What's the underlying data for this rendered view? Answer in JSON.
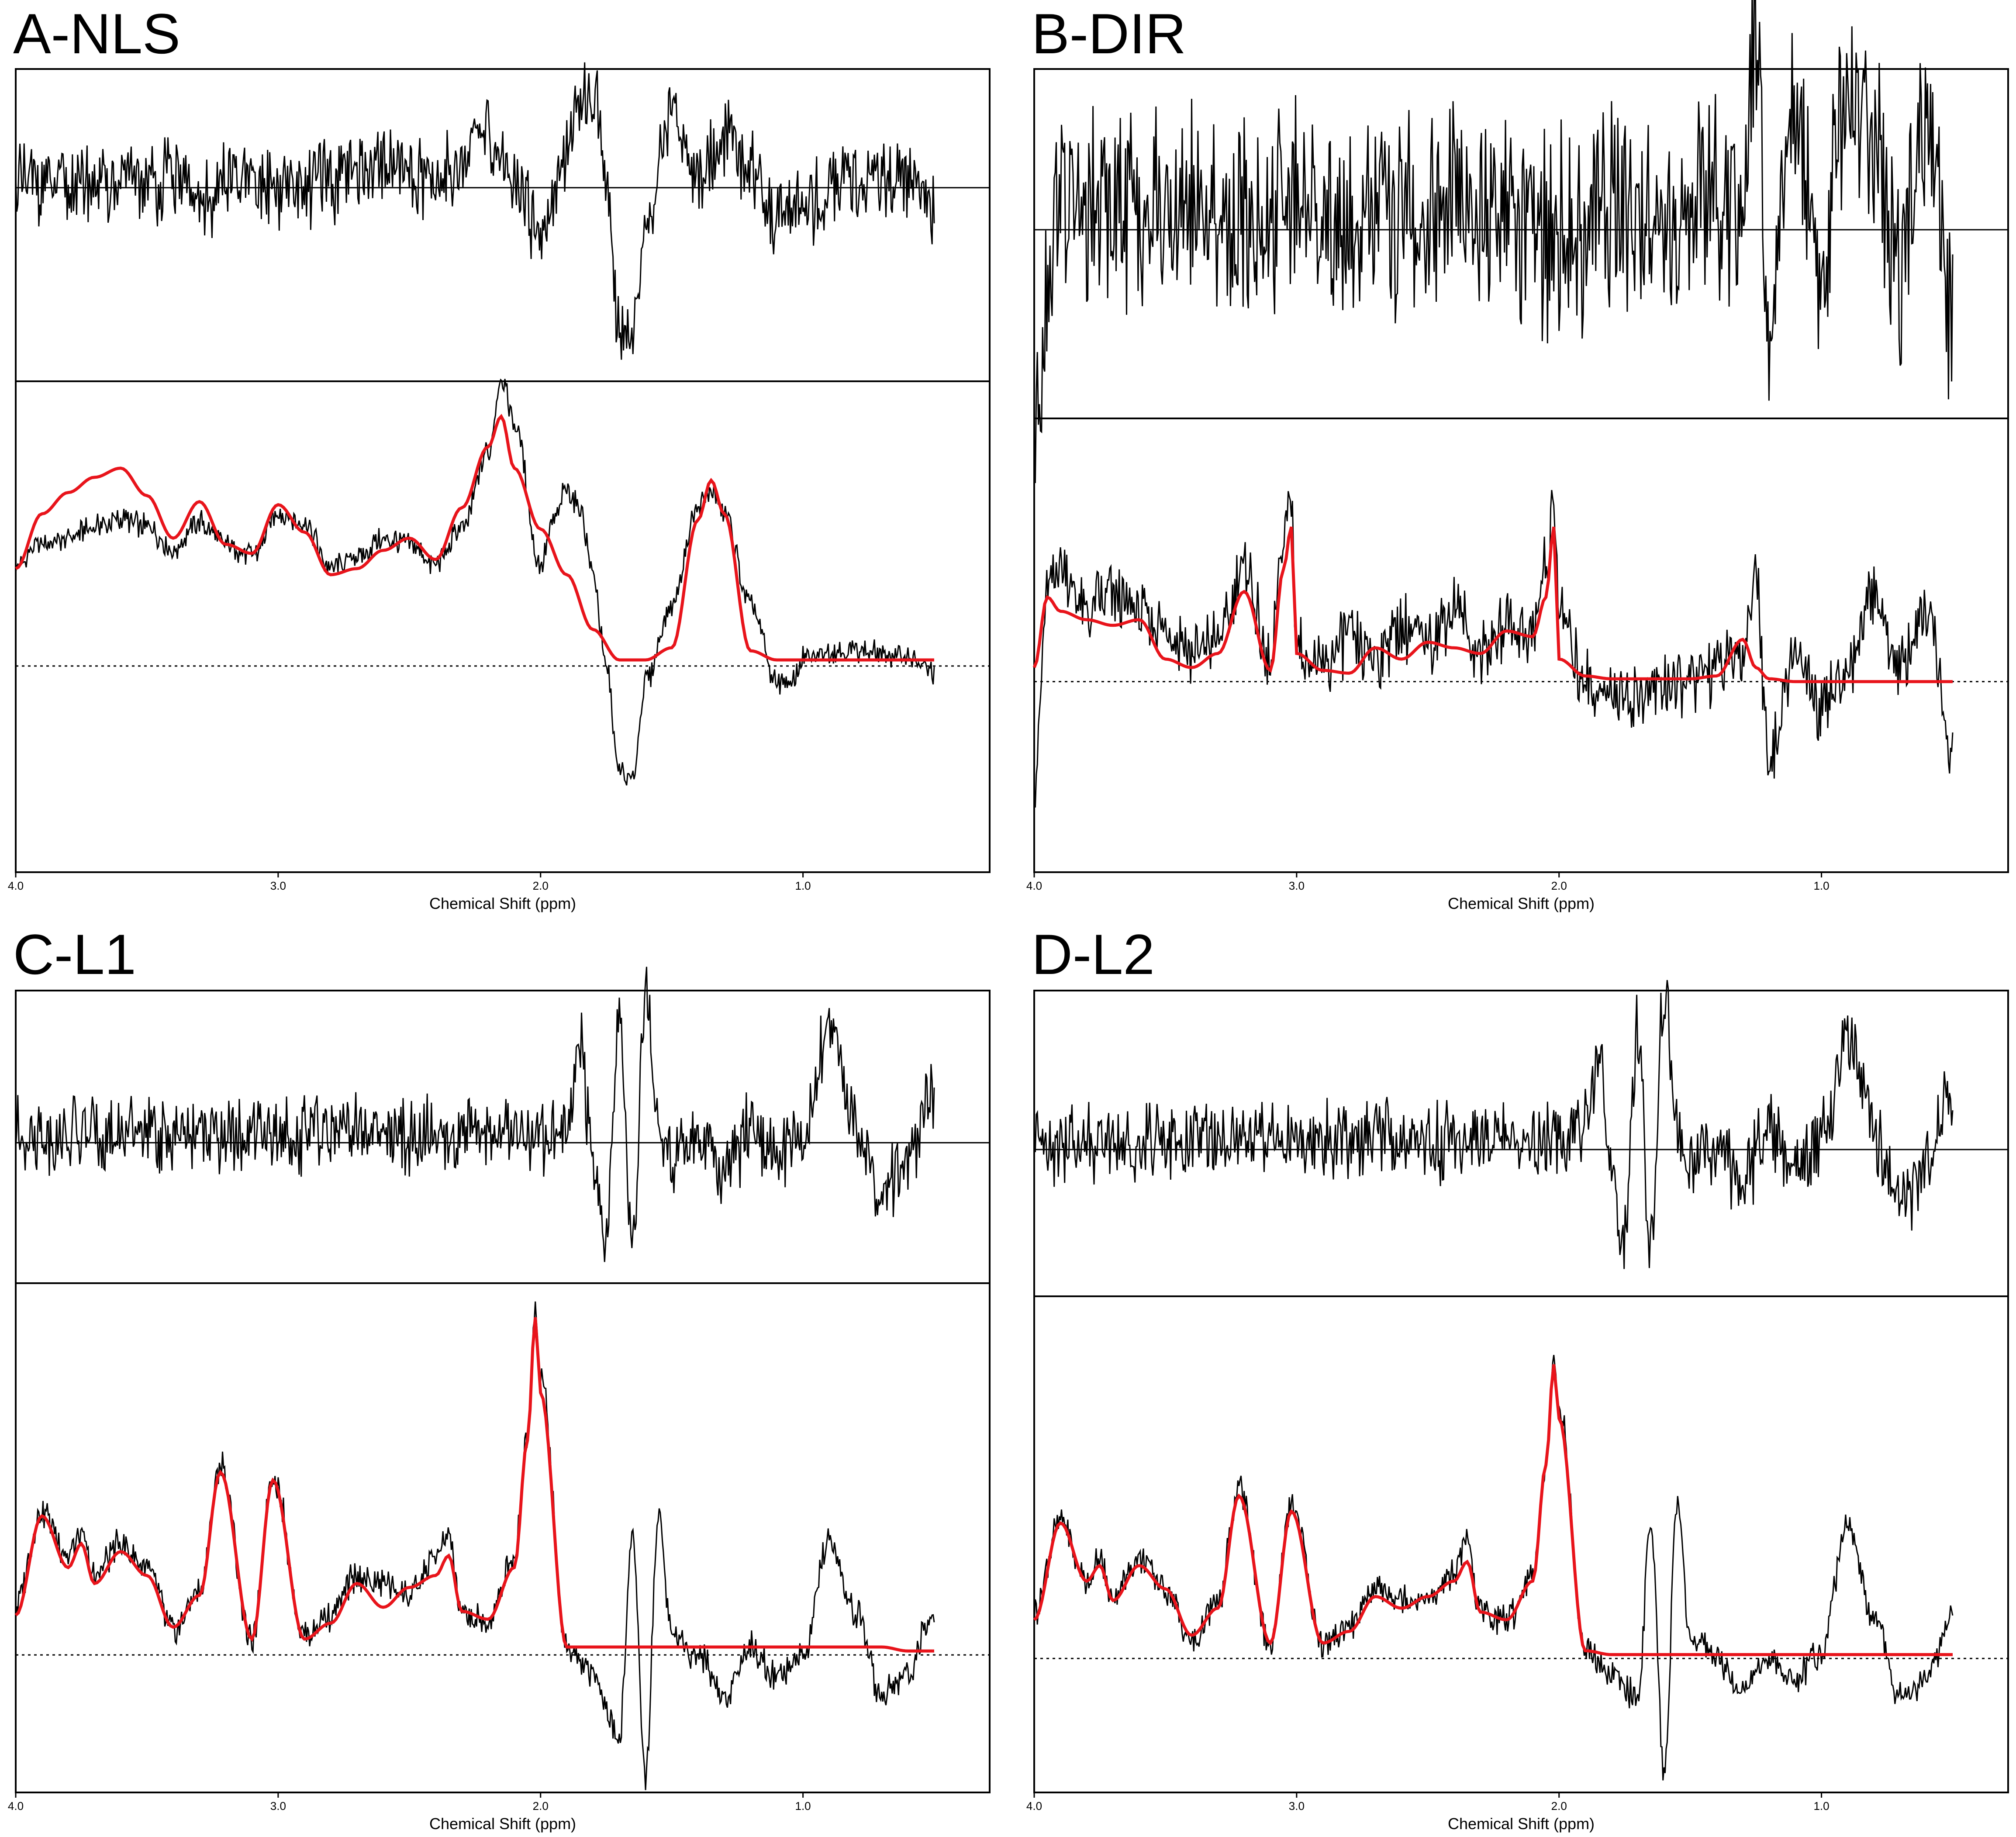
{
  "figure": {
    "colors": {
      "spectrum": "#000000",
      "fit": "#e8141b",
      "baseline": "#000000"
    }
  },
  "chart_data": [
    {
      "type": "line",
      "panel": "A-NLS",
      "xlabel": "Chemical Shift (ppm)",
      "x_ticks": [
        "4.0",
        "3.0",
        "2.0",
        "1.0"
      ],
      "x_axis_reversed": true,
      "xlim": [
        4.0,
        0.4
      ],
      "subplots": [
        "residual",
        "spectrum with fit"
      ],
      "series": [
        {
          "name": "",
          "role": "spectrum",
          "color": "#000000",
          "x": [
            4.0,
            3.9,
            3.8,
            3.7,
            3.6,
            3.5,
            3.4,
            3.3,
            3.2,
            3.1,
            3.0,
            2.9,
            2.8,
            2.7,
            2.6,
            2.5,
            2.4,
            2.3,
            2.2,
            2.15,
            2.1,
            2.0,
            1.95,
            1.9,
            1.85,
            1.8,
            1.75,
            1.7,
            1.65,
            1.6,
            1.5,
            1.4,
            1.35,
            1.3,
            1.2,
            1.1,
            1.05,
            1.0,
            0.9,
            0.8,
            0.7,
            0.6,
            0.5
          ],
          "y": [
            0.33,
            0.4,
            0.42,
            0.46,
            0.48,
            0.46,
            0.38,
            0.47,
            0.4,
            0.36,
            0.5,
            0.47,
            0.32,
            0.36,
            0.42,
            0.4,
            0.33,
            0.45,
            0.7,
            0.95,
            0.8,
            0.33,
            0.48,
            0.58,
            0.52,
            0.3,
            0.0,
            -0.35,
            -0.38,
            -0.05,
            0.2,
            0.52,
            0.58,
            0.5,
            0.2,
            -0.05,
            -0.06,
            0.02,
            0.05,
            0.05,
            0.04,
            0.03,
            -0.02
          ]
        },
        {
          "name": "",
          "role": "fit",
          "color": "#e8141b",
          "x": [
            4.0,
            3.9,
            3.8,
            3.7,
            3.6,
            3.5,
            3.4,
            3.3,
            3.2,
            3.1,
            3.0,
            2.9,
            2.8,
            2.7,
            2.6,
            2.5,
            2.4,
            2.3,
            2.2,
            2.15,
            2.1,
            2.0,
            1.9,
            1.8,
            1.7,
            1.6,
            1.5,
            1.4,
            1.35,
            1.3,
            1.2,
            1.1,
            1.0,
            0.9,
            0.8,
            0.7,
            0.6,
            0.5
          ],
          "y": [
            0.32,
            0.5,
            0.57,
            0.62,
            0.65,
            0.56,
            0.42,
            0.54,
            0.4,
            0.37,
            0.53,
            0.44,
            0.3,
            0.32,
            0.38,
            0.42,
            0.35,
            0.52,
            0.72,
            0.82,
            0.65,
            0.45,
            0.3,
            0.12,
            0.02,
            0.02,
            0.06,
            0.48,
            0.61,
            0.5,
            0.05,
            0.02,
            0.02,
            0.02,
            0.02,
            0.02,
            0.02,
            0.02
          ]
        },
        {
          "name": "",
          "role": "residual",
          "x": [
            4.0,
            3.8,
            3.6,
            3.4,
            3.3,
            3.2,
            3.0,
            2.8,
            2.6,
            2.4,
            2.2,
            2.1,
            2.0,
            1.9,
            1.85,
            1.8,
            1.75,
            1.7,
            1.65,
            1.6,
            1.5,
            1.4,
            1.3,
            1.2,
            1.1,
            1.0,
            0.8,
            0.6,
            0.5
          ],
          "y": [
            0.05,
            0.02,
            0.04,
            0.05,
            -0.1,
            0.02,
            0.01,
            0.03,
            0.15,
            0.05,
            0.3,
            0.05,
            -0.25,
            0.2,
            0.45,
            0.6,
            0.05,
            -0.8,
            -0.9,
            -0.2,
            0.45,
            0.05,
            0.3,
            0.1,
            -0.2,
            -0.1,
            0.05,
            0.05,
            -0.1
          ]
        }
      ]
    },
    {
      "type": "line",
      "panel": "B-DIR",
      "xlabel": "Chemical Shift (ppm)",
      "x_ticks": [
        "4.0",
        "3.0",
        "2.0",
        "1.0"
      ],
      "x_axis_reversed": true,
      "xlim": [
        4.0,
        0.4
      ],
      "subplots": [
        "residual",
        "spectrum with fit"
      ],
      "series": [
        {
          "name": "",
          "role": "spectrum",
          "color": "#000000",
          "x": [
            4.0,
            3.95,
            3.9,
            3.8,
            3.7,
            3.6,
            3.5,
            3.4,
            3.3,
            3.2,
            3.1,
            3.05,
            3.02,
            3.0,
            2.9,
            2.8,
            2.7,
            2.6,
            2.5,
            2.4,
            2.3,
            2.2,
            2.1,
            2.05,
            2.02,
            2.0,
            1.9,
            1.8,
            1.7,
            1.6,
            1.5,
            1.4,
            1.3,
            1.25,
            1.2,
            1.1,
            1.0,
            0.9,
            0.8,
            0.7,
            0.6,
            0.5
          ],
          "y": [
            -0.4,
            0.3,
            0.4,
            0.25,
            0.3,
            0.25,
            0.2,
            0.1,
            0.15,
            0.4,
            0.05,
            0.5,
            0.65,
            0.1,
            0.05,
            0.15,
            0.1,
            0.2,
            0.15,
            0.25,
            0.1,
            0.2,
            0.18,
            0.4,
            0.65,
            0.25,
            0.0,
            -0.05,
            -0.05,
            -0.02,
            0.0,
            0.05,
            0.1,
            0.4,
            -0.3,
            0.1,
            -0.1,
            0.05,
            0.3,
            0.05,
            0.25,
            -0.25
          ]
        },
        {
          "name": "",
          "role": "fit",
          "color": "#e8141b",
          "x": [
            4.0,
            3.95,
            3.9,
            3.8,
            3.7,
            3.6,
            3.5,
            3.4,
            3.3,
            3.2,
            3.1,
            3.05,
            3.02,
            3.0,
            2.9,
            2.8,
            2.7,
            2.6,
            2.5,
            2.4,
            2.3,
            2.2,
            2.1,
            2.05,
            2.02,
            2.0,
            1.9,
            1.8,
            1.7,
            1.6,
            1.5,
            1.4,
            1.3,
            1.25,
            1.2,
            1.1,
            1.0,
            0.9,
            0.8,
            0.7,
            0.6,
            0.5
          ],
          "y": [
            0.05,
            0.3,
            0.25,
            0.22,
            0.2,
            0.22,
            0.08,
            0.05,
            0.1,
            0.32,
            0.04,
            0.4,
            0.55,
            0.1,
            0.04,
            0.03,
            0.12,
            0.08,
            0.14,
            0.12,
            0.1,
            0.18,
            0.16,
            0.3,
            0.55,
            0.08,
            0.02,
            0.01,
            0.01,
            0.01,
            0.01,
            0.02,
            0.15,
            0.05,
            0.01,
            0.0,
            0.0,
            0.0,
            0.0,
            0.0,
            0.0,
            0.0
          ]
        },
        {
          "name": "",
          "role": "residual",
          "x": [
            4.0,
            3.9,
            3.8,
            3.6,
            3.4,
            3.2,
            3.0,
            2.8,
            2.6,
            2.4,
            2.2,
            2.0,
            1.8,
            1.6,
            1.4,
            1.3,
            1.25,
            1.2,
            1.15,
            1.1,
            1.0,
            0.9,
            0.8,
            0.7,
            0.6,
            0.5
          ],
          "y": [
            -0.9,
            0.2,
            0.1,
            0.05,
            0.1,
            0.05,
            0.1,
            0.05,
            0.05,
            0.1,
            0.05,
            0.0,
            0.1,
            0.05,
            0.1,
            0.1,
            0.95,
            -0.7,
            0.1,
            0.6,
            -0.2,
            0.75,
            0.5,
            -0.2,
            0.55,
            -0.4
          ]
        }
      ]
    },
    {
      "type": "line",
      "panel": "C-L1",
      "xlabel": "Chemical Shift (ppm)",
      "x_ticks": [
        "4.0",
        "3.0",
        "2.0",
        "1.0"
      ],
      "x_axis_reversed": true,
      "xlim": [
        4.0,
        0.4
      ],
      "subplots": [
        "residual",
        "spectrum with fit"
      ],
      "series": [
        {
          "name": "",
          "role": "spectrum",
          "color": "#000000",
          "x": [
            4.0,
            3.9,
            3.8,
            3.75,
            3.7,
            3.6,
            3.5,
            3.4,
            3.3,
            3.22,
            3.1,
            3.02,
            2.9,
            2.8,
            2.7,
            2.6,
            2.5,
            2.4,
            2.35,
            2.3,
            2.2,
            2.1,
            2.05,
            2.02,
            2.0,
            1.9,
            1.8,
            1.7,
            1.65,
            1.6,
            1.55,
            1.5,
            1.4,
            1.3,
            1.2,
            1.1,
            1.0,
            0.9,
            0.8,
            0.7,
            0.6,
            0.5
          ],
          "y": [
            0.12,
            0.36,
            0.25,
            0.3,
            0.2,
            0.28,
            0.22,
            0.06,
            0.16,
            0.48,
            0.03,
            0.45,
            0.05,
            0.1,
            0.2,
            0.18,
            0.15,
            0.24,
            0.3,
            0.1,
            0.08,
            0.25,
            0.55,
            0.88,
            0.7,
            0.02,
            -0.05,
            -0.2,
            0.3,
            -0.3,
            0.35,
            0.05,
            0.0,
            -0.1,
            0.02,
            -0.05,
            0.0,
            0.28,
            0.1,
            -0.1,
            -0.05,
            0.12
          ]
        },
        {
          "name": "",
          "role": "fit",
          "color": "#e8141b",
          "x": [
            4.0,
            3.9,
            3.8,
            3.75,
            3.7,
            3.6,
            3.5,
            3.4,
            3.3,
            3.22,
            3.1,
            3.02,
            2.9,
            2.8,
            2.7,
            2.6,
            2.5,
            2.4,
            2.35,
            2.3,
            2.2,
            2.1,
            2.05,
            2.02,
            2.0,
            1.9,
            1.8,
            1.7,
            1.6,
            1.5,
            1.4,
            1.3,
            1.2,
            1.1,
            1.0,
            0.9,
            0.8,
            0.7,
            0.6,
            0.5
          ],
          "y": [
            0.1,
            0.35,
            0.22,
            0.28,
            0.18,
            0.26,
            0.2,
            0.07,
            0.15,
            0.46,
            0.04,
            0.44,
            0.04,
            0.08,
            0.18,
            0.12,
            0.17,
            0.2,
            0.25,
            0.11,
            0.09,
            0.22,
            0.54,
            0.85,
            0.66,
            0.02,
            0.02,
            0.02,
            0.02,
            0.02,
            0.02,
            0.02,
            0.02,
            0.02,
            0.02,
            0.02,
            0.02,
            0.02,
            0.01,
            0.01
          ]
        },
        {
          "name": "",
          "role": "residual",
          "x": [
            4.0,
            3.8,
            3.6,
            3.4,
            3.2,
            3.0,
            2.8,
            2.6,
            2.4,
            2.2,
            2.0,
            1.9,
            1.85,
            1.8,
            1.75,
            1.7,
            1.65,
            1.6,
            1.55,
            1.5,
            1.4,
            1.3,
            1.2,
            1.1,
            1.0,
            0.9,
            0.8,
            0.7,
            0.6,
            0.5
          ],
          "y": [
            0.05,
            0.05,
            0.05,
            0.05,
            0.05,
            0.05,
            0.05,
            0.05,
            0.05,
            0.05,
            0.05,
            0.15,
            0.6,
            -0.1,
            -0.6,
            0.8,
            -0.7,
            0.95,
            0.1,
            -0.1,
            0.05,
            -0.2,
            0.1,
            -0.1,
            0.05,
            0.7,
            0.1,
            -0.3,
            -0.1,
            0.3
          ]
        }
      ]
    },
    {
      "type": "line",
      "panel": "D-L2",
      "xlabel": "Chemical Shift (ppm)",
      "x_ticks": [
        "4.0",
        "3.0",
        "2.0",
        "1.0"
      ],
      "x_axis_reversed": true,
      "xlim": [
        4.0,
        0.4
      ],
      "subplots": [
        "residual",
        "spectrum with fit"
      ],
      "series": [
        {
          "name": "",
          "role": "spectrum",
          "color": "#000000",
          "x": [
            4.0,
            3.9,
            3.8,
            3.75,
            3.7,
            3.6,
            3.5,
            3.4,
            3.3,
            3.22,
            3.1,
            3.02,
            2.9,
            2.8,
            2.7,
            2.6,
            2.5,
            2.4,
            2.35,
            2.3,
            2.2,
            2.1,
            2.05,
            2.02,
            2.0,
            1.9,
            1.8,
            1.7,
            1.65,
            1.6,
            1.55,
            1.5,
            1.4,
            1.3,
            1.2,
            1.1,
            1.0,
            0.9,
            0.8,
            0.7,
            0.6,
            0.5
          ],
          "y": [
            0.12,
            0.36,
            0.2,
            0.25,
            0.16,
            0.26,
            0.18,
            0.04,
            0.14,
            0.44,
            0.03,
            0.4,
            0.04,
            0.08,
            0.18,
            0.16,
            0.15,
            0.22,
            0.3,
            0.12,
            0.1,
            0.22,
            0.5,
            0.78,
            0.65,
            0.02,
            -0.05,
            -0.1,
            0.35,
            -0.3,
            0.4,
            0.05,
            0.0,
            -0.08,
            0.0,
            -0.05,
            0.02,
            0.35,
            0.1,
            -0.1,
            -0.05,
            0.12
          ]
        },
        {
          "name": "",
          "role": "fit",
          "color": "#e8141b",
          "x": [
            4.0,
            3.9,
            3.8,
            3.75,
            3.7,
            3.6,
            3.5,
            3.4,
            3.3,
            3.22,
            3.1,
            3.02,
            2.9,
            2.8,
            2.7,
            2.6,
            2.5,
            2.4,
            2.35,
            2.3,
            2.2,
            2.1,
            2.05,
            2.02,
            2.0,
            1.9,
            1.8,
            1.7,
            1.6,
            1.5,
            1.4,
            1.3,
            1.2,
            1.1,
            1.0,
            0.9,
            0.8,
            0.7,
            0.6,
            0.5
          ],
          "y": [
            0.1,
            0.35,
            0.2,
            0.24,
            0.15,
            0.24,
            0.18,
            0.06,
            0.13,
            0.42,
            0.04,
            0.38,
            0.04,
            0.07,
            0.16,
            0.13,
            0.16,
            0.2,
            0.25,
            0.12,
            0.1,
            0.2,
            0.5,
            0.76,
            0.62,
            0.02,
            0.01,
            0.01,
            0.01,
            0.01,
            0.01,
            0.01,
            0.01,
            0.01,
            0.01,
            0.01,
            0.01,
            0.01,
            0.01,
            0.01
          ]
        },
        {
          "name": "",
          "role": "residual",
          "x": [
            4.0,
            3.8,
            3.6,
            3.4,
            3.2,
            3.0,
            2.8,
            2.7,
            2.6,
            2.4,
            2.2,
            2.0,
            1.9,
            1.85,
            1.8,
            1.75,
            1.7,
            1.65,
            1.6,
            1.55,
            1.5,
            1.4,
            1.3,
            1.2,
            1.1,
            1.0,
            0.9,
            0.8,
            0.7,
            0.6,
            0.5
          ],
          "y": [
            0.05,
            0.05,
            0.05,
            0.05,
            0.05,
            0.05,
            0.05,
            0.15,
            0.05,
            0.05,
            0.05,
            0.05,
            0.15,
            0.55,
            -0.1,
            -0.55,
            0.75,
            -0.65,
            0.95,
            0.1,
            -0.1,
            0.05,
            -0.2,
            0.1,
            -0.1,
            0.05,
            0.7,
            0.1,
            -0.3,
            -0.1,
            0.3
          ]
        }
      ]
    }
  ]
}
